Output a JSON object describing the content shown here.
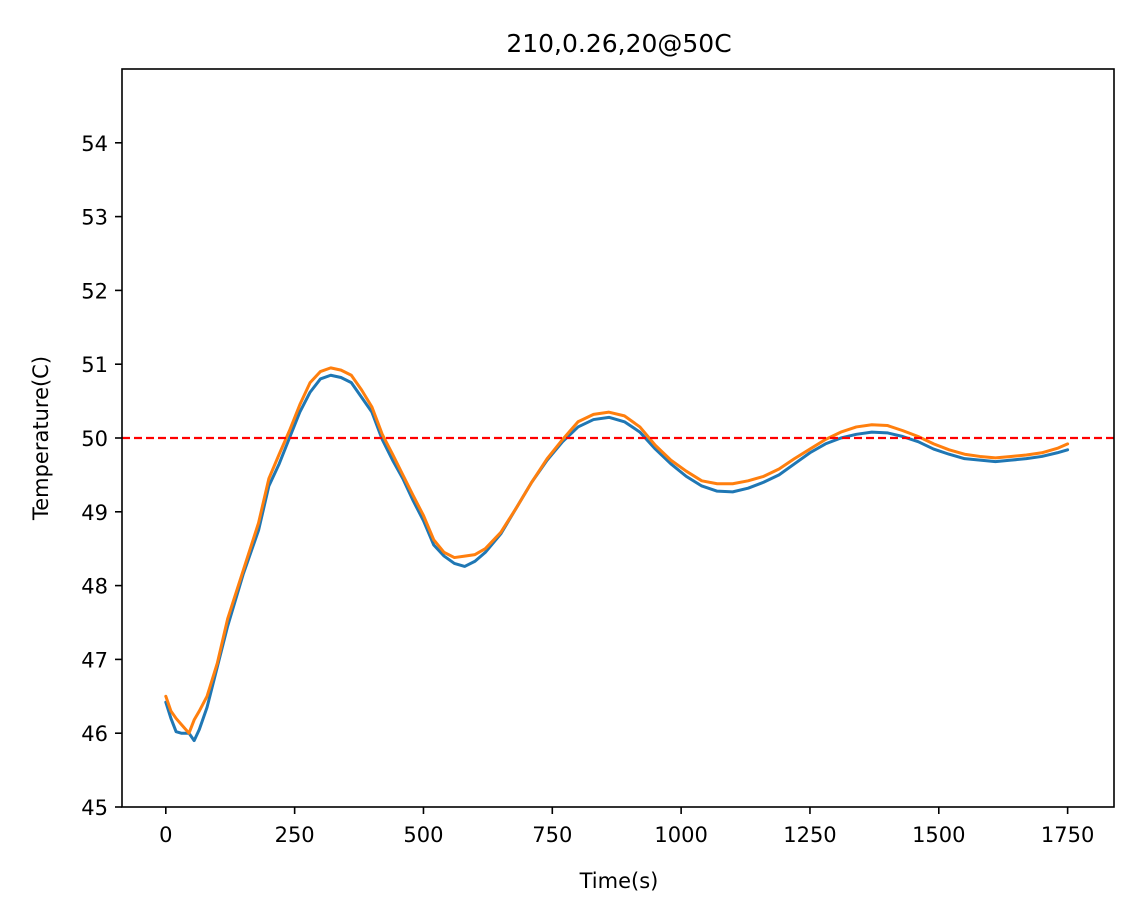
{
  "chart_data": {
    "type": "line",
    "title": "210,0.26,20@50C",
    "xlabel": "Time(s)",
    "ylabel": "Temperature(C)",
    "xlim": [
      -85,
      1840
    ],
    "ylim": [
      45,
      55
    ],
    "xticks": [
      0,
      250,
      500,
      750,
      1000,
      1250,
      1500,
      1750
    ],
    "xtick_labels": [
      "0",
      "250",
      "500",
      "750",
      "1000",
      "1250",
      "1500",
      "1750"
    ],
    "yticks": [
      45,
      46,
      47,
      48,
      49,
      50,
      51,
      52,
      53,
      54
    ],
    "ytick_labels": [
      "45",
      "46",
      "47",
      "48",
      "49",
      "50",
      "51",
      "52",
      "53",
      "54"
    ],
    "grid": false,
    "setpoint": {
      "value": 50,
      "style": "dashed",
      "color": "#ff0000"
    },
    "series": [
      {
        "color": "#1f77b4",
        "x": [
          0,
          10,
          20,
          30,
          45,
          55,
          65,
          80,
          100,
          120,
          150,
          180,
          200,
          220,
          240,
          260,
          280,
          300,
          320,
          340,
          360,
          380,
          400,
          420,
          440,
          460,
          480,
          500,
          520,
          540,
          560,
          580,
          600,
          620,
          650,
          680,
          710,
          740,
          770,
          800,
          830,
          860,
          890,
          920,
          950,
          980,
          1010,
          1040,
          1070,
          1100,
          1130,
          1160,
          1190,
          1220,
          1250,
          1280,
          1310,
          1340,
          1370,
          1400,
          1430,
          1460,
          1490,
          1520,
          1550,
          1580,
          1610,
          1640,
          1670,
          1700,
          1730,
          1750
        ],
        "y": [
          46.42,
          46.2,
          46.02,
          46.0,
          46.0,
          45.9,
          46.05,
          46.35,
          46.9,
          47.45,
          48.15,
          48.75,
          49.35,
          49.65,
          50.0,
          50.35,
          50.62,
          50.8,
          50.85,
          50.82,
          50.75,
          50.55,
          50.35,
          49.98,
          49.7,
          49.45,
          49.15,
          48.88,
          48.55,
          48.4,
          48.3,
          48.26,
          48.33,
          48.45,
          48.7,
          49.05,
          49.4,
          49.7,
          49.95,
          50.15,
          50.25,
          50.28,
          50.22,
          50.08,
          49.85,
          49.65,
          49.48,
          49.35,
          49.28,
          49.27,
          49.32,
          49.4,
          49.5,
          49.65,
          49.8,
          49.92,
          50.0,
          50.05,
          50.08,
          50.07,
          50.02,
          49.95,
          49.85,
          49.78,
          49.72,
          49.7,
          49.68,
          49.7,
          49.72,
          49.75,
          49.8,
          49.84
        ]
      },
      {
        "color": "#ff7f0e",
        "x": [
          0,
          10,
          20,
          30,
          45,
          55,
          65,
          80,
          100,
          120,
          150,
          180,
          200,
          220,
          240,
          260,
          280,
          300,
          320,
          340,
          360,
          380,
          400,
          420,
          440,
          460,
          480,
          500,
          520,
          540,
          560,
          580,
          600,
          620,
          650,
          680,
          710,
          740,
          770,
          800,
          830,
          860,
          890,
          920,
          950,
          980,
          1010,
          1040,
          1070,
          1100,
          1130,
          1160,
          1190,
          1220,
          1250,
          1280,
          1310,
          1340,
          1370,
          1400,
          1430,
          1460,
          1490,
          1520,
          1550,
          1580,
          1610,
          1640,
          1670,
          1700,
          1730,
          1750
        ],
        "y": [
          46.5,
          46.3,
          46.2,
          46.12,
          46.0,
          46.18,
          46.3,
          46.5,
          46.95,
          47.55,
          48.2,
          48.85,
          49.45,
          49.78,
          50.1,
          50.45,
          50.75,
          50.9,
          50.95,
          50.92,
          50.85,
          50.65,
          50.42,
          50.05,
          49.78,
          49.5,
          49.22,
          48.95,
          48.62,
          48.45,
          48.38,
          48.4,
          48.42,
          48.5,
          48.72,
          49.05,
          49.4,
          49.72,
          49.98,
          50.22,
          50.32,
          50.35,
          50.3,
          50.15,
          49.9,
          49.7,
          49.55,
          49.42,
          49.38,
          49.38,
          49.42,
          49.48,
          49.58,
          49.72,
          49.85,
          49.98,
          50.08,
          50.15,
          50.18,
          50.17,
          50.1,
          50.02,
          49.92,
          49.84,
          49.78,
          49.75,
          49.73,
          49.75,
          49.77,
          49.8,
          49.86,
          49.92
        ]
      }
    ]
  }
}
